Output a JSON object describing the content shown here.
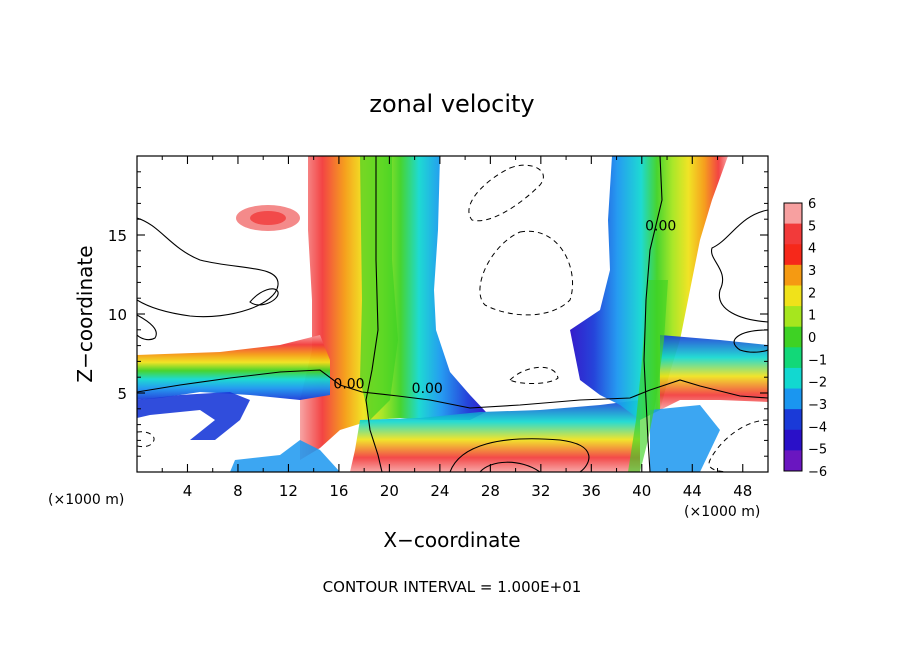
{
  "chart_data": {
    "type": "heatmap",
    "title": "zonal velocity",
    "xlabel": "X−coordinate",
    "ylabel": "Z−coordinate",
    "x_unit_left": "(×1000 m)",
    "x_unit_right": "(×1000 m)",
    "xlim": [
      0,
      50
    ],
    "ylim": [
      0,
      20
    ],
    "x_ticks": [
      4,
      8,
      12,
      16,
      20,
      24,
      28,
      32,
      36,
      40,
      44,
      48
    ],
    "y_ticks": [
      5,
      10,
      15
    ],
    "colorbar": {
      "levels": [
        6,
        5,
        4,
        3,
        2,
        1,
        0,
        -1,
        -2,
        -3,
        -4,
        -5,
        -6
      ],
      "labels": [
        "6",
        "5",
        "4",
        "3",
        "2",
        "1",
        "0",
        "−1",
        "−2",
        "−3",
        "−4",
        "−5",
        "−6"
      ],
      "colors": [
        "#f7a0a0",
        "#f23a3a",
        "#f6281a",
        "#f59a12",
        "#f0e21a",
        "#a6e61e",
        "#3ed224",
        "#12d878",
        "#12d8d0",
        "#1a96f0",
        "#1a3ad8",
        "#2a10c8",
        "#6a16c0"
      ]
    },
    "contour_labels": [
      {
        "text": "0.00",
        "x": 41.5,
        "y": 15.3
      },
      {
        "text": "0.00",
        "x": 16.8,
        "y": 5.3
      },
      {
        "text": "0.00",
        "x": 23.0,
        "y": 5.0
      }
    ],
    "footer": "CONTOUR INTERVAL = 1.000E+01"
  }
}
